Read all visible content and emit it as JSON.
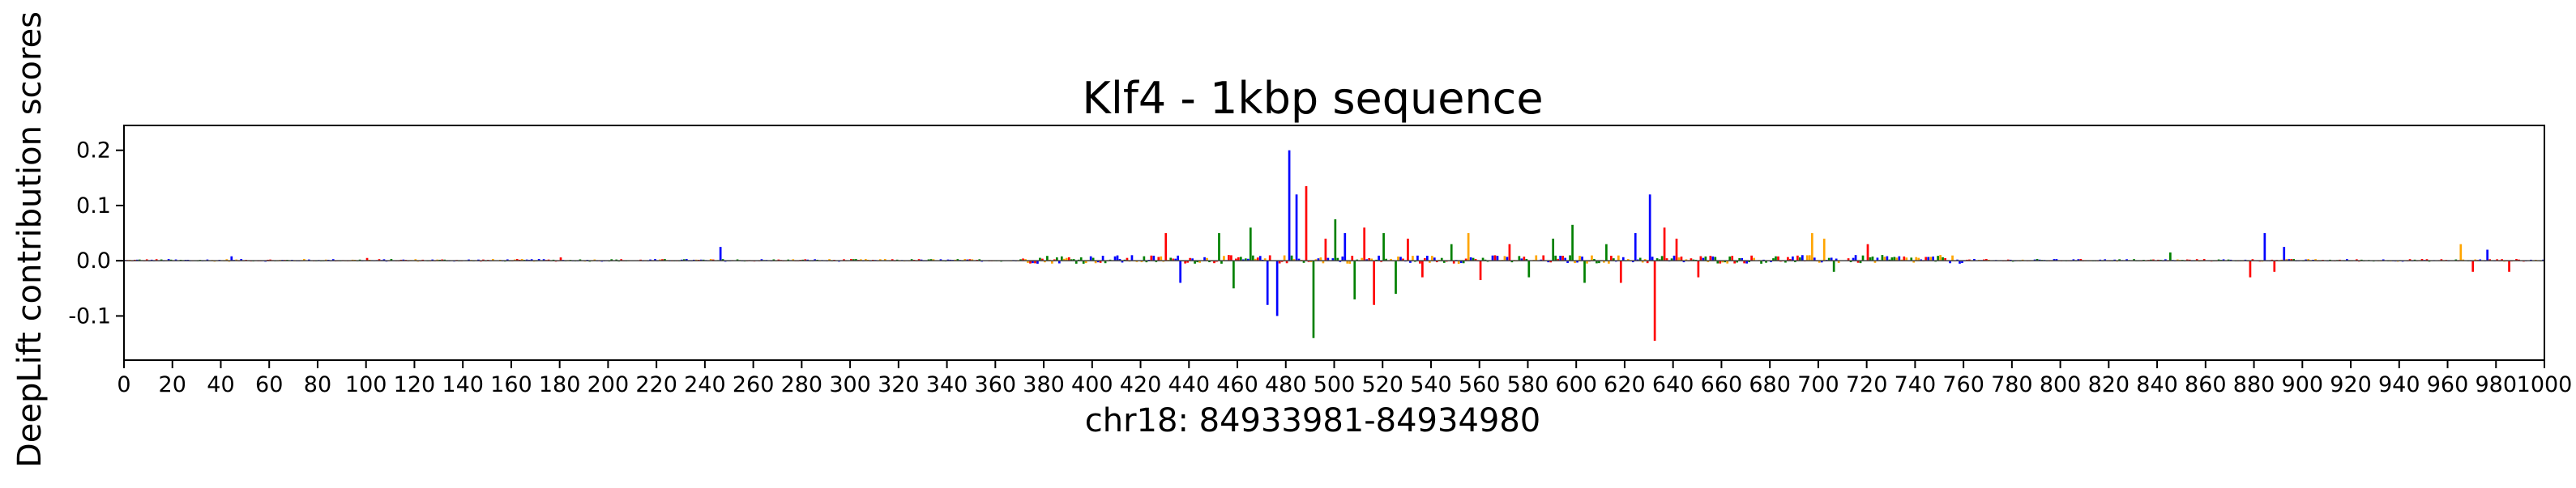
{
  "chart_data": {
    "type": "bar",
    "title": "Klf4 - 1kbp sequence",
    "xlabel": "chr18: 84933981-84934980",
    "ylabel": "DeepLift contribution scores",
    "xlim": [
      0,
      1000
    ],
    "ylim": [
      -0.18,
      0.245
    ],
    "x_ticks": [
      0,
      20,
      40,
      60,
      80,
      100,
      120,
      140,
      160,
      180,
      200,
      220,
      240,
      260,
      280,
      300,
      320,
      340,
      360,
      380,
      400,
      420,
      440,
      460,
      480,
      500,
      520,
      540,
      560,
      580,
      600,
      620,
      640,
      660,
      680,
      700,
      720,
      740,
      760,
      780,
      800,
      820,
      840,
      860,
      880,
      900,
      920,
      940,
      960,
      980,
      1000
    ],
    "y_ticks": [
      -0.1,
      0.0,
      0.1,
      0.2
    ],
    "grid": false,
    "legend": "none",
    "colors": {
      "A": "#008000",
      "C": "#0000ff",
      "G": "#ffa500",
      "T": "#ff0000"
    },
    "peaks": [
      {
        "x": 430,
        "value": 0.05,
        "base": "T"
      },
      {
        "x": 436,
        "value": -0.04,
        "base": "C"
      },
      {
        "x": 452,
        "value": 0.05,
        "base": "A"
      },
      {
        "x": 458,
        "value": -0.05,
        "base": "A"
      },
      {
        "x": 465,
        "value": 0.06,
        "base": "A"
      },
      {
        "x": 472,
        "value": -0.08,
        "base": "C"
      },
      {
        "x": 476,
        "value": -0.1,
        "base": "C"
      },
      {
        "x": 481,
        "value": 0.2,
        "base": "C"
      },
      {
        "x": 484,
        "value": 0.12,
        "base": "C"
      },
      {
        "x": 488,
        "value": 0.135,
        "base": "T"
      },
      {
        "x": 491,
        "value": -0.14,
        "base": "A"
      },
      {
        "x": 496,
        "value": 0.04,
        "base": "T"
      },
      {
        "x": 500,
        "value": 0.075,
        "base": "A"
      },
      {
        "x": 504,
        "value": 0.05,
        "base": "C"
      },
      {
        "x": 508,
        "value": -0.07,
        "base": "A"
      },
      {
        "x": 512,
        "value": 0.06,
        "base": "T"
      },
      {
        "x": 516,
        "value": -0.08,
        "base": "T"
      },
      {
        "x": 520,
        "value": 0.05,
        "base": "A"
      },
      {
        "x": 525,
        "value": -0.06,
        "base": "A"
      },
      {
        "x": 530,
        "value": 0.04,
        "base": "T"
      },
      {
        "x": 536,
        "value": -0.03,
        "base": "T"
      },
      {
        "x": 548,
        "value": 0.03,
        "base": "A"
      },
      {
        "x": 555,
        "value": 0.05,
        "base": "G"
      },
      {
        "x": 560,
        "value": -0.035,
        "base": "T"
      },
      {
        "x": 572,
        "value": 0.03,
        "base": "T"
      },
      {
        "x": 580,
        "value": -0.03,
        "base": "A"
      },
      {
        "x": 590,
        "value": 0.04,
        "base": "A"
      },
      {
        "x": 598,
        "value": 0.065,
        "base": "A"
      },
      {
        "x": 603,
        "value": -0.04,
        "base": "A"
      },
      {
        "x": 612,
        "value": 0.03,
        "base": "A"
      },
      {
        "x": 618,
        "value": -0.04,
        "base": "T"
      },
      {
        "x": 624,
        "value": 0.05,
        "base": "C"
      },
      {
        "x": 630,
        "value": 0.12,
        "base": "C"
      },
      {
        "x": 632,
        "value": -0.145,
        "base": "T"
      },
      {
        "x": 636,
        "value": 0.06,
        "base": "T"
      },
      {
        "x": 641,
        "value": 0.04,
        "base": "T"
      },
      {
        "x": 650,
        "value": -0.03,
        "base": "T"
      },
      {
        "x": 697,
        "value": 0.05,
        "base": "G"
      },
      {
        "x": 702,
        "value": 0.04,
        "base": "G"
      },
      {
        "x": 706,
        "value": -0.02,
        "base": "A"
      },
      {
        "x": 720,
        "value": 0.03,
        "base": "T"
      },
      {
        "x": 845,
        "value": 0.015,
        "base": "A"
      },
      {
        "x": 878,
        "value": -0.03,
        "base": "T"
      },
      {
        "x": 884,
        "value": 0.05,
        "base": "C"
      },
      {
        "x": 888,
        "value": -0.02,
        "base": "T"
      },
      {
        "x": 892,
        "value": 0.025,
        "base": "C"
      },
      {
        "x": 965,
        "value": 0.03,
        "base": "G"
      },
      {
        "x": 970,
        "value": -0.02,
        "base": "T"
      },
      {
        "x": 976,
        "value": 0.02,
        "base": "C"
      },
      {
        "x": 985,
        "value": -0.02,
        "base": "T"
      },
      {
        "x": 246,
        "value": 0.025,
        "base": "C"
      },
      {
        "x": 44,
        "value": 0.008,
        "base": "C"
      },
      {
        "x": 100,
        "value": 0.005,
        "base": "T"
      },
      {
        "x": 180,
        "value": 0.006,
        "base": "T"
      }
    ]
  }
}
